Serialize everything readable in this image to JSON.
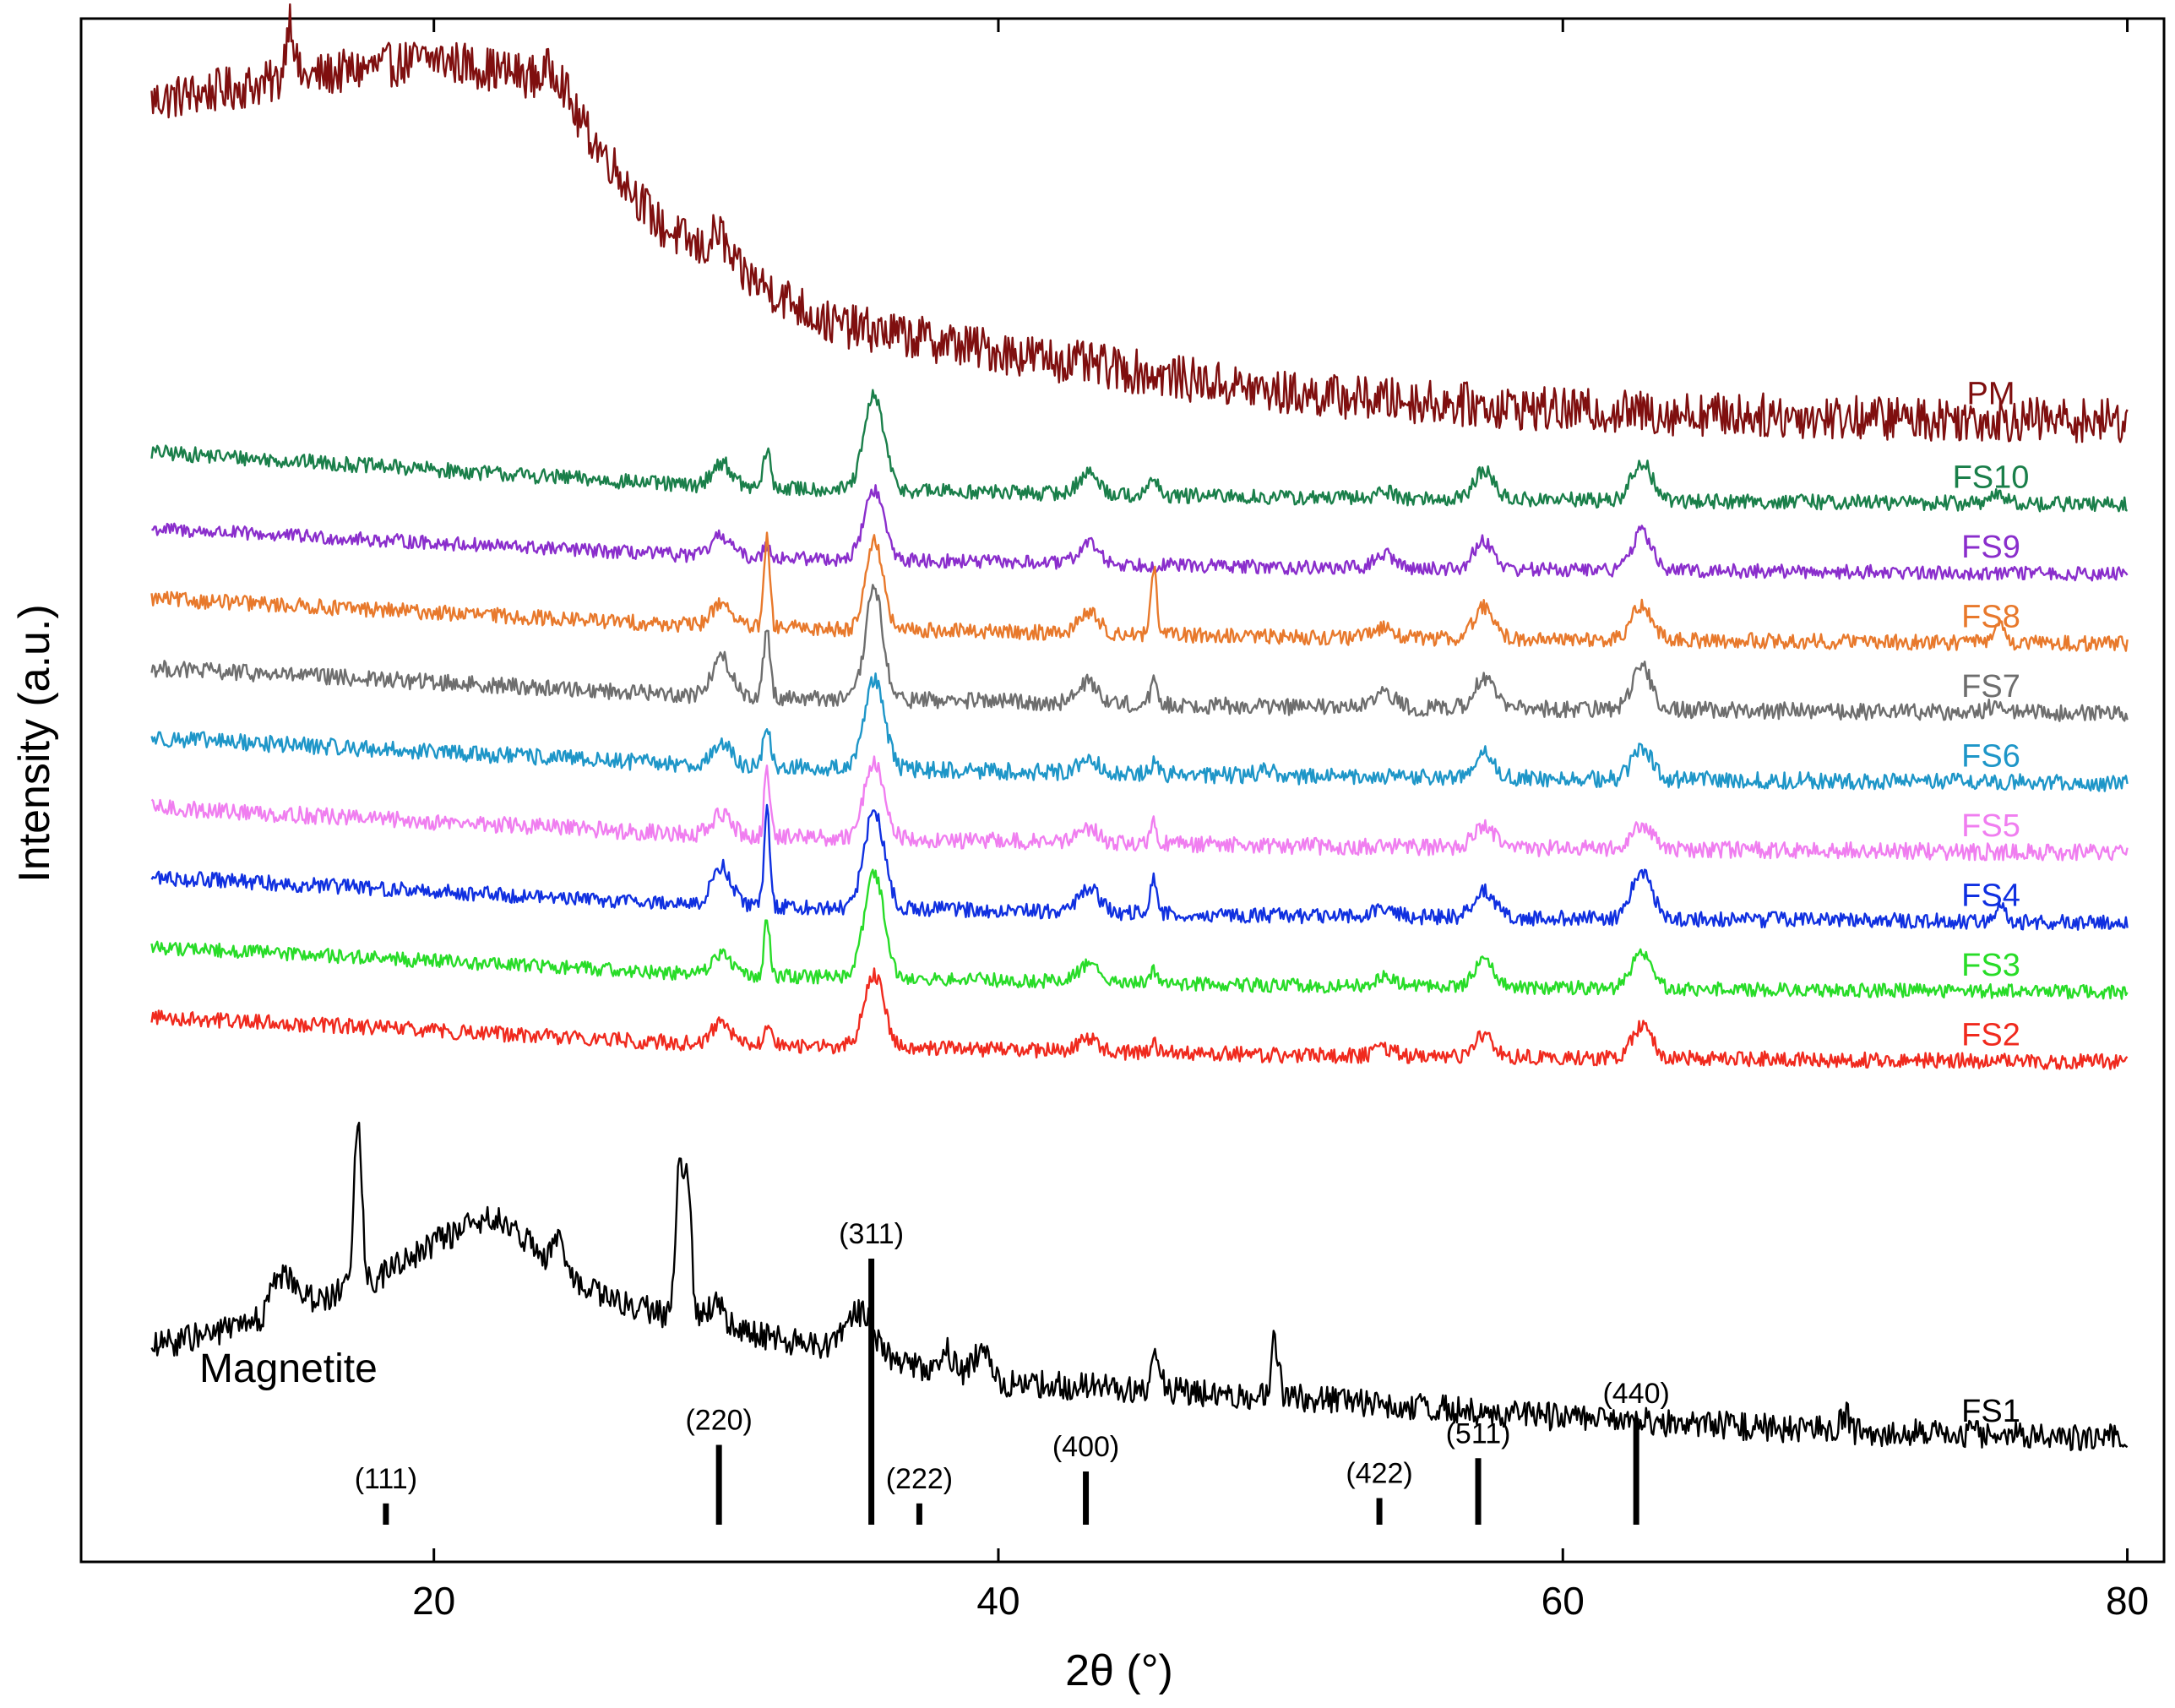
{
  "chart_data": {
    "type": "line",
    "title": "",
    "xlabel": "2θ (°)",
    "ylabel": "Intensity (a.u.)",
    "xlim": [
      7.5,
      81.3
    ],
    "xticks": [
      20,
      40,
      60,
      80
    ],
    "xtick_labels": [
      "20",
      "40",
      "60",
      "80"
    ],
    "y_units": "offset intensity (a.u.)",
    "series": [
      {
        "name": "PM",
        "color": "#7f0f0f",
        "baseline": [
          [
            10,
            15.0
          ],
          [
            20,
            15.6
          ],
          [
            24,
            15.3
          ],
          [
            28,
            13.2
          ],
          [
            34,
            11.8
          ],
          [
            40,
            11.4
          ],
          [
            50,
            10.8
          ],
          [
            60,
            10.55
          ],
          [
            70,
            10.45
          ],
          [
            80,
            10.4
          ]
        ],
        "noise": 0.32,
        "peaks": [
          [
            14.9,
            0.9,
            0.15
          ],
          [
            30.1,
            0.4,
            0.25
          ],
          [
            24.4,
            0.3,
            0.3
          ]
        ]
      },
      {
        "name": "FS10",
        "color": "#1a7f4a",
        "baseline": [
          [
            10,
            9.95
          ],
          [
            30,
            9.45
          ],
          [
            50,
            9.3
          ],
          [
            80,
            9.2
          ]
        ],
        "noise": 0.11,
        "peaks": [
          [
            30.2,
            0.35,
            0.35
          ],
          [
            31.8,
            0.55,
            0.12
          ],
          [
            35.6,
            1.35,
            0.35
          ],
          [
            43.2,
            0.3,
            0.35
          ],
          [
            45.5,
            0.3,
            0.12
          ],
          [
            53.7,
            0.1,
            0.35
          ],
          [
            57.2,
            0.4,
            0.35
          ],
          [
            62.8,
            0.55,
            0.35
          ],
          [
            75.4,
            0.1,
            0.35
          ]
        ]
      },
      {
        "name": "FS9",
        "color": "#8a2ecc",
        "baseline": [
          [
            10,
            8.85
          ],
          [
            30,
            8.45
          ],
          [
            50,
            8.3
          ],
          [
            80,
            8.2
          ]
        ],
        "noise": 0.1,
        "peaks": [
          [
            30.2,
            0.3,
            0.35
          ],
          [
            31.8,
            0.2,
            0.12
          ],
          [
            35.6,
            1.0,
            0.35
          ],
          [
            43.2,
            0.3,
            0.35
          ],
          [
            53.7,
            0.2,
            0.35
          ],
          [
            57.2,
            0.4,
            0.35
          ],
          [
            62.8,
            0.55,
            0.35
          ]
        ]
      },
      {
        "name": "FS8",
        "color": "#e8792c",
        "baseline": [
          [
            10,
            7.85
          ],
          [
            30,
            7.45
          ],
          [
            50,
            7.3
          ],
          [
            80,
            7.2
          ]
        ],
        "noise": 0.11,
        "peaks": [
          [
            30.2,
            0.35,
            0.35
          ],
          [
            31.8,
            1.3,
            0.1
          ],
          [
            35.6,
            1.3,
            0.3
          ],
          [
            43.2,
            0.3,
            0.35
          ],
          [
            45.5,
            1.0,
            0.1
          ],
          [
            53.7,
            0.15,
            0.35
          ],
          [
            57.2,
            0.45,
            0.35
          ],
          [
            62.8,
            0.5,
            0.35
          ],
          [
            75.5,
            0.25,
            0.2
          ]
        ]
      },
      {
        "name": "FS7",
        "color": "#6e6e6e",
        "baseline": [
          [
            10,
            6.85
          ],
          [
            30,
            6.45
          ],
          [
            50,
            6.3
          ],
          [
            80,
            6.2
          ]
        ],
        "noise": 0.12,
        "peaks": [
          [
            30.2,
            0.55,
            0.35
          ],
          [
            31.8,
            0.95,
            0.12
          ],
          [
            35.6,
            1.6,
            0.3
          ],
          [
            43.2,
            0.3,
            0.35
          ],
          [
            45.5,
            0.3,
            0.12
          ],
          [
            53.7,
            0.2,
            0.35
          ],
          [
            57.2,
            0.45,
            0.35
          ],
          [
            62.8,
            0.6,
            0.35
          ],
          [
            75.4,
            0.1,
            0.35
          ]
        ]
      },
      {
        "name": "FS6",
        "color": "#1e96c8",
        "baseline": [
          [
            10,
            5.85
          ],
          [
            30,
            5.45
          ],
          [
            50,
            5.3
          ],
          [
            80,
            5.2
          ]
        ],
        "noise": 0.12,
        "peaks": [
          [
            30.2,
            0.3,
            0.35
          ],
          [
            31.8,
            0.6,
            0.12
          ],
          [
            35.6,
            1.3,
            0.35
          ],
          [
            43.2,
            0.2,
            0.35
          ],
          [
            45.5,
            0.15,
            0.12
          ],
          [
            49.5,
            0.1,
            0.3
          ],
          [
            57.2,
            0.35,
            0.35
          ],
          [
            62.8,
            0.45,
            0.35
          ]
        ]
      },
      {
        "name": "FS5",
        "color": "#f07ef0",
        "baseline": [
          [
            10,
            4.85
          ],
          [
            30,
            4.45
          ],
          [
            50,
            4.3
          ],
          [
            80,
            4.2
          ]
        ],
        "noise": 0.12,
        "peaks": [
          [
            30.2,
            0.3,
            0.35
          ],
          [
            31.8,
            0.9,
            0.1
          ],
          [
            35.6,
            1.1,
            0.35
          ],
          [
            43.2,
            0.2,
            0.35
          ],
          [
            45.5,
            0.3,
            0.1
          ],
          [
            57.2,
            0.3,
            0.35
          ],
          [
            62.8,
            0.35,
            0.35
          ]
        ]
      },
      {
        "name": "FS4",
        "color": "#1030e0",
        "baseline": [
          [
            10,
            3.85
          ],
          [
            30,
            3.45
          ],
          [
            50,
            3.3
          ],
          [
            80,
            3.2
          ]
        ],
        "noise": 0.11,
        "peaks": [
          [
            30.2,
            0.55,
            0.35
          ],
          [
            31.8,
            1.4,
            0.1
          ],
          [
            35.6,
            1.4,
            0.35
          ],
          [
            43.2,
            0.35,
            0.35
          ],
          [
            45.5,
            0.5,
            0.12
          ],
          [
            53.7,
            0.15,
            0.35
          ],
          [
            57.2,
            0.4,
            0.35
          ],
          [
            62.8,
            0.7,
            0.35
          ],
          [
            75.5,
            0.2,
            0.2
          ]
        ]
      },
      {
        "name": "FS3",
        "color": "#28dc28",
        "baseline": [
          [
            10,
            2.85
          ],
          [
            30,
            2.45
          ],
          [
            50,
            2.3
          ],
          [
            80,
            2.2
          ]
        ],
        "noise": 0.1,
        "peaks": [
          [
            30.2,
            0.3,
            0.35
          ],
          [
            31.8,
            0.8,
            0.1
          ],
          [
            35.6,
            1.5,
            0.35
          ],
          [
            43.2,
            0.25,
            0.35
          ],
          [
            45.5,
            0.2,
            0.12
          ],
          [
            53.7,
            0.15,
            0.35
          ],
          [
            57.2,
            0.35,
            0.35
          ],
          [
            62.8,
            0.5,
            0.35
          ]
        ]
      },
      {
        "name": "FS2",
        "color": "#f02a1e",
        "baseline": [
          [
            10,
            1.85
          ],
          [
            30,
            1.45
          ],
          [
            50,
            1.3
          ],
          [
            80,
            1.2
          ]
        ],
        "noise": 0.11,
        "peaks": [
          [
            30.2,
            0.3,
            0.35
          ],
          [
            31.8,
            0.3,
            0.12
          ],
          [
            35.6,
            1.05,
            0.35
          ],
          [
            43.2,
            0.2,
            0.35
          ],
          [
            45.5,
            0.15,
            0.12
          ],
          [
            53.7,
            0.1,
            0.35
          ],
          [
            57.2,
            0.3,
            0.35
          ],
          [
            62.8,
            0.45,
            0.35
          ]
        ]
      },
      {
        "name": "FS1",
        "color": "#000000",
        "baseline": [
          [
            10,
            -2.9
          ],
          [
            14,
            -2.5
          ],
          [
            16,
            -2.2
          ],
          [
            18,
            -1.9
          ],
          [
            20,
            -1.4
          ],
          [
            22,
            -1.0
          ],
          [
            24,
            -1.6
          ],
          [
            26,
            -2.2
          ],
          [
            30,
            -2.6
          ],
          [
            40,
            -3.4
          ],
          [
            50,
            -3.6
          ],
          [
            60,
            -3.9
          ],
          [
            70,
            -4.1
          ],
          [
            80,
            -4.2
          ]
        ],
        "noise": 0.2,
        "peaks": [
          [
            14.5,
            0.5,
            0.3
          ],
          [
            15.1,
            0.3,
            0.3
          ],
          [
            17.3,
            2.4,
            0.14
          ],
          [
            24.4,
            0.4,
            0.15
          ],
          [
            28.7,
            2.1,
            0.13
          ],
          [
            29.0,
            1.9,
            0.13
          ],
          [
            30.0,
            0.3,
            0.3
          ],
          [
            35.1,
            0.6,
            0.5
          ],
          [
            38.2,
            0.3,
            0.2
          ],
          [
            39.4,
            0.4,
            0.3
          ],
          [
            45.6,
            0.55,
            0.15
          ],
          [
            49.8,
            0.8,
            0.13
          ],
          [
            70.0,
            0.25,
            0.15
          ]
        ]
      }
    ],
    "reference": {
      "name": "Magnetite",
      "peaks": [
        {
          "hkl": "(111)",
          "two_theta": 18.3,
          "intensity": 8
        },
        {
          "hkl": "(220)",
          "two_theta": 30.1,
          "intensity": 30
        },
        {
          "hkl": "(311)",
          "two_theta": 35.5,
          "intensity": 100
        },
        {
          "hkl": "(222)",
          "two_theta": 37.2,
          "intensity": 8
        },
        {
          "hkl": "(400)",
          "two_theta": 43.1,
          "intensity": 20
        },
        {
          "hkl": "(422)",
          "two_theta": 53.5,
          "intensity": 10
        },
        {
          "hkl": "(511)",
          "two_theta": 57.0,
          "intensity": 25
        },
        {
          "hkl": "(440)",
          "two_theta": 62.6,
          "intensity": 40
        }
      ]
    }
  }
}
